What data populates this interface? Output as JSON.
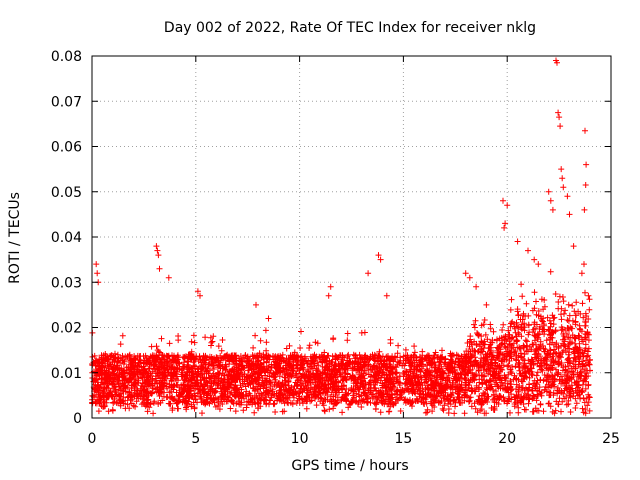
{
  "chart_data": {
    "type": "scatter",
    "title": "Day 002 of 2022, Rate Of TEC Index for receiver nklg",
    "xlabel": "GPS time / hours",
    "ylabel": "ROTI / TECUs",
    "xlim": [
      0,
      25
    ],
    "ylim": [
      0,
      0.08
    ],
    "x_ticks": [
      0,
      5,
      10,
      15,
      20,
      25
    ],
    "x_tick_labels": [
      "0",
      "5",
      "10",
      "15",
      "20",
      "25"
    ],
    "y_ticks": [
      0,
      0.01,
      0.02,
      0.03,
      0.04,
      0.05,
      0.06,
      0.07,
      0.08
    ],
    "y_tick_labels": [
      "0",
      "0.01",
      "0.02",
      "0.03",
      "0.04",
      "0.05",
      "0.06",
      "0.07",
      "0.08"
    ],
    "grid": true,
    "marker": "+",
    "color": "#ff0000",
    "series": [
      {
        "name": "ROTI",
        "envelope": {
          "description_hours": [
            0,
            24
          ],
          "base_band": [
            0.003,
            0.014
          ],
          "note": "dense band of ~6000 points between ~0.003 and ~0.015 TECU/s for 0-24 h"
        },
        "notable_points": [
          {
            "x": 0.2,
            "y": 0.034
          },
          {
            "x": 0.25,
            "y": 0.032
          },
          {
            "x": 0.3,
            "y": 0.03
          },
          {
            "x": 3.1,
            "y": 0.038
          },
          {
            "x": 3.15,
            "y": 0.037
          },
          {
            "x": 3.2,
            "y": 0.036
          },
          {
            "x": 3.25,
            "y": 0.033
          },
          {
            "x": 3.7,
            "y": 0.031
          },
          {
            "x": 5.1,
            "y": 0.028
          },
          {
            "x": 5.2,
            "y": 0.027
          },
          {
            "x": 7.9,
            "y": 0.025
          },
          {
            "x": 8.5,
            "y": 0.022
          },
          {
            "x": 11.5,
            "y": 0.029
          },
          {
            "x": 11.4,
            "y": 0.027
          },
          {
            "x": 13.8,
            "y": 0.036
          },
          {
            "x": 13.9,
            "y": 0.035
          },
          {
            "x": 13.3,
            "y": 0.032
          },
          {
            "x": 14.2,
            "y": 0.027
          },
          {
            "x": 18.0,
            "y": 0.032
          },
          {
            "x": 18.2,
            "y": 0.031
          },
          {
            "x": 18.5,
            "y": 0.029
          },
          {
            "x": 19.0,
            "y": 0.025
          },
          {
            "x": 19.8,
            "y": 0.048
          },
          {
            "x": 20.0,
            "y": 0.047
          },
          {
            "x": 19.9,
            "y": 0.043
          },
          {
            "x": 19.85,
            "y": 0.042
          },
          {
            "x": 20.5,
            "y": 0.039
          },
          {
            "x": 21.0,
            "y": 0.037
          },
          {
            "x": 21.3,
            "y": 0.035
          },
          {
            "x": 21.5,
            "y": 0.034
          },
          {
            "x": 22.0,
            "y": 0.05
          },
          {
            "x": 22.1,
            "y": 0.048
          },
          {
            "x": 22.2,
            "y": 0.046
          },
          {
            "x": 22.35,
            "y": 0.079
          },
          {
            "x": 22.4,
            "y": 0.0785
          },
          {
            "x": 22.45,
            "y": 0.0675
          },
          {
            "x": 22.5,
            "y": 0.0665
          },
          {
            "x": 22.55,
            "y": 0.0645
          },
          {
            "x": 22.6,
            "y": 0.055
          },
          {
            "x": 22.65,
            "y": 0.053
          },
          {
            "x": 22.7,
            "y": 0.051
          },
          {
            "x": 22.9,
            "y": 0.049
          },
          {
            "x": 23.0,
            "y": 0.045
          },
          {
            "x": 23.2,
            "y": 0.038
          },
          {
            "x": 23.75,
            "y": 0.0635
          },
          {
            "x": 23.8,
            "y": 0.056
          },
          {
            "x": 23.78,
            "y": 0.0515
          },
          {
            "x": 23.72,
            "y": 0.046
          },
          {
            "x": 23.7,
            "y": 0.034
          },
          {
            "x": 23.6,
            "y": 0.032
          }
        ]
      }
    ]
  }
}
